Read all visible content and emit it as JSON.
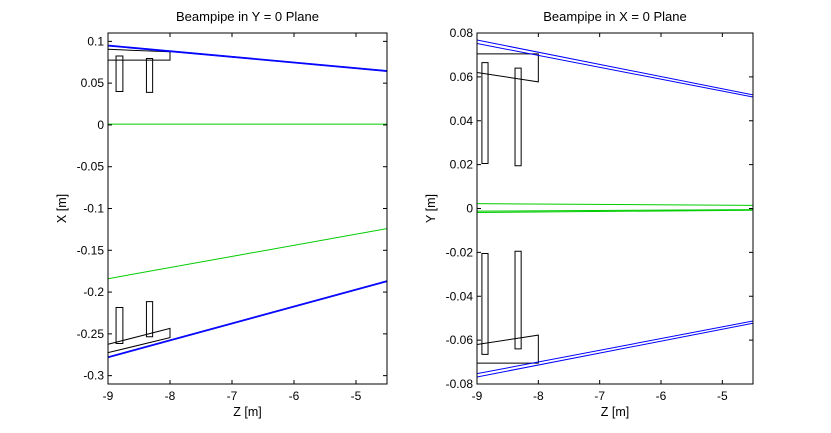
{
  "chart_data": [
    {
      "type": "line",
      "title": "Beampipe in Y = 0 Plane",
      "xlabel": "Z [m]",
      "ylabel": "X [m]",
      "xlim": [
        -9,
        -4.5
      ],
      "ylim": [
        -0.31,
        0.11
      ],
      "xticks": [
        -9,
        -8,
        -7,
        -6,
        -5
      ],
      "xtick_labels": [
        "-9",
        "-8",
        "-7",
        "-6",
        "-5"
      ],
      "yticks": [
        0.1,
        0.05,
        0,
        -0.05,
        -0.1,
        -0.15,
        -0.2,
        -0.25,
        -0.3
      ],
      "ytick_labels": [
        "0.1",
        "0.05",
        "0",
        "-0.05",
        "-0.1",
        "-0.15",
        "-0.2",
        "-0.25",
        "-0.3"
      ],
      "series": [
        {
          "color": "#0000ff",
          "x": [
            -9,
            -4.5
          ],
          "y": [
            0.0955,
            0.065
          ]
        },
        {
          "color": "#0000ff",
          "x": [
            -9,
            -4.5
          ],
          "y": [
            0.0945,
            0.064
          ]
        },
        {
          "color": "#0000ff",
          "x": [
            -9,
            -4.5
          ],
          "y": [
            -0.2775,
            -0.1865
          ]
        },
        {
          "color": "#0000ff",
          "x": [
            -9,
            -4.5
          ],
          "y": [
            -0.2785,
            -0.1875
          ]
        },
        {
          "color": "#00cc00",
          "x": [
            -9,
            -4.5
          ],
          "y": [
            0.001,
            0.001
          ]
        },
        {
          "color": "#00cc00",
          "x": [
            -9,
            -4.5
          ],
          "y": [
            -0.184,
            -0.124
          ]
        }
      ],
      "outlines": [
        {
          "x": [
            -9,
            -8.0,
            -8.0,
            -9
          ],
          "y": [
            0.0905,
            0.0875,
            0.0775,
            0.0775
          ]
        },
        {
          "x": [
            -8.87,
            -8.76,
            -8.76,
            -8.87
          ],
          "y": [
            0.0825,
            0.0825,
            0.04,
            0.04
          ]
        },
        {
          "x": [
            -8.38,
            -8.28,
            -8.28,
            -8.38
          ],
          "y": [
            0.0795,
            0.0795,
            0.039,
            0.039
          ]
        },
        {
          "x": [
            -9,
            -8.0,
            -8.0,
            -9
          ],
          "y": [
            -0.2625,
            -0.2435,
            -0.2545,
            -0.2725
          ]
        },
        {
          "x": [
            -8.87,
            -8.76,
            -8.76,
            -8.87
          ],
          "y": [
            -0.2185,
            -0.2185,
            -0.2615,
            -0.2615
          ]
        },
        {
          "x": [
            -8.38,
            -8.28,
            -8.28,
            -8.38
          ],
          "y": [
            -0.2115,
            -0.2115,
            -0.2535,
            -0.2535
          ]
        }
      ]
    },
    {
      "type": "line",
      "title": "Beampipe in X = 0 Plane",
      "xlabel": "Z [m]",
      "ylabel": "Y [m]",
      "xlim": [
        -9,
        -4.5
      ],
      "ylim": [
        -0.08,
        0.08
      ],
      "xticks": [
        -9,
        -8,
        -7,
        -6,
        -5
      ],
      "xtick_labels": [
        "-9",
        "-8",
        "-7",
        "-6",
        "-5"
      ],
      "yticks": [
        0.08,
        0.06,
        0.04,
        0.02,
        0,
        -0.02,
        -0.04,
        -0.06,
        -0.08
      ],
      "ytick_labels": [
        "0.08",
        "0.06",
        "0.04",
        "0.02",
        "0",
        "-0.02",
        "-0.04",
        "-0.06",
        "-0.08"
      ],
      "series": [
        {
          "color": "#0000ff",
          "x": [
            -9,
            -4.5
          ],
          "y": [
            0.0768,
            0.0518
          ]
        },
        {
          "color": "#0000ff",
          "x": [
            -9,
            -4.5
          ],
          "y": [
            0.0752,
            0.0508
          ]
        },
        {
          "color": "#0000ff",
          "x": [
            -9,
            -4.5
          ],
          "y": [
            -0.0753,
            -0.0513
          ]
        },
        {
          "color": "#0000ff",
          "x": [
            -9,
            -4.5
          ],
          "y": [
            -0.0768,
            -0.0523
          ]
        },
        {
          "color": "#00cc00",
          "x": [
            -9,
            -4.5
          ],
          "y": [
            0.0022,
            0.0014
          ]
        },
        {
          "color": "#00cc00",
          "x": [
            -9,
            -4.5
          ],
          "y": [
            -0.0012,
            -0.0005
          ]
        },
        {
          "color": "#00cc00",
          "x": [
            -9,
            -4.5
          ],
          "y": [
            -0.0018,
            -0.0008
          ]
        }
      ],
      "outlines": [
        {
          "x": [
            -9,
            -8.0,
            -8.0,
            -9
          ],
          "y": [
            0.0705,
            0.0705,
            0.0577,
            0.062
          ]
        },
        {
          "x": [
            -8.92,
            -8.82,
            -8.82,
            -8.92
          ],
          "y": [
            0.0665,
            0.0665,
            0.0205,
            0.0205
          ]
        },
        {
          "x": [
            -8.38,
            -8.28,
            -8.28,
            -8.38
          ],
          "y": [
            0.064,
            0.064,
            0.0195,
            0.0195
          ]
        },
        {
          "x": [
            -9,
            -8.0,
            -8.0,
            -9
          ],
          "y": [
            -0.062,
            -0.0577,
            -0.0705,
            -0.0705
          ]
        },
        {
          "x": [
            -8.92,
            -8.82,
            -8.82,
            -8.92
          ],
          "y": [
            -0.0205,
            -0.0205,
            -0.0665,
            -0.0665
          ]
        },
        {
          "x": [
            -8.38,
            -8.28,
            -8.28,
            -8.38
          ],
          "y": [
            -0.0195,
            -0.0195,
            -0.064,
            -0.064
          ]
        }
      ]
    }
  ]
}
